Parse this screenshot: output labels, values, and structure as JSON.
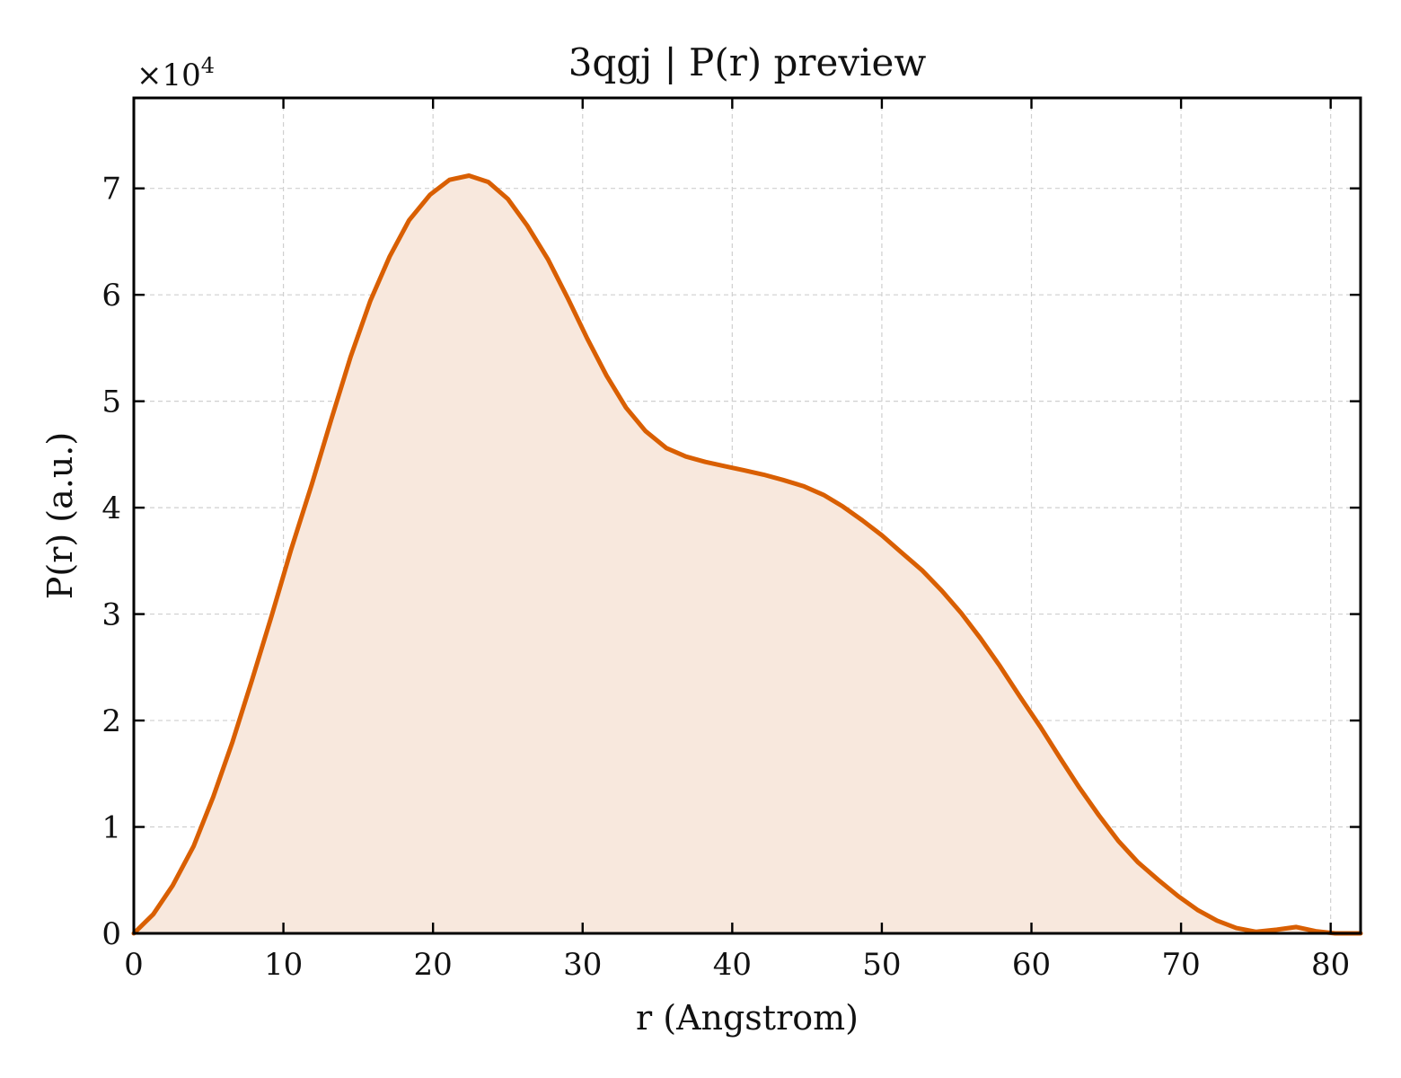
{
  "chart_data": {
    "type": "area",
    "title": "3qgj | P(r) preview",
    "xlabel": "r (Angstrom)",
    "ylabel": "P(r) (a.u.)",
    "y_multiplier_label": "×10",
    "y_multiplier_exponent": "4",
    "xlim": [
      0,
      82
    ],
    "ylim": [
      0,
      78500
    ],
    "x_ticks": [
      0,
      10,
      20,
      30,
      40,
      50,
      60,
      70,
      80
    ],
    "x_tick_labels": [
      "0",
      "10",
      "20",
      "30",
      "40",
      "50",
      "60",
      "70",
      "80"
    ],
    "y_ticks": [
      0,
      10000,
      20000,
      30000,
      40000,
      50000,
      60000,
      70000
    ],
    "y_tick_labels": [
      "0",
      "1",
      "2",
      "3",
      "4",
      "5",
      "6",
      "7"
    ],
    "grid": true,
    "colors": {
      "line": "#d95f02",
      "fill": "#f8e8dd"
    },
    "series": [
      {
        "x": [
          0,
          1.3,
          2.6,
          4.0,
          5.3,
          6.6,
          7.9,
          9.2,
          10.5,
          11.9,
          13.2,
          14.5,
          15.8,
          17.1,
          18.4,
          19.8,
          21.1,
          22.4,
          23.7,
          25.0,
          26.3,
          27.7,
          29.0,
          30.3,
          31.6,
          32.9,
          34.2,
          35.6,
          36.9,
          38.2,
          39.5,
          40.8,
          42.1,
          43.4,
          44.8,
          46.1,
          47.4,
          48.7,
          50.0,
          51.3,
          52.7,
          54.0,
          55.3,
          56.6,
          57.9,
          59.2,
          60.6,
          61.9,
          63.2,
          64.5,
          65.8,
          67.1,
          68.5,
          69.8,
          71.1,
          72.4,
          73.7,
          75.0,
          76.4,
          77.7,
          79.0,
          80.3,
          81.6,
          82.0
        ],
        "y": [
          0,
          1800,
          4500,
          8200,
          12800,
          18000,
          23800,
          29800,
          36000,
          42200,
          48300,
          54200,
          59400,
          63600,
          67000,
          69400,
          70800,
          71200,
          70600,
          69000,
          66500,
          63300,
          59700,
          55900,
          52400,
          49400,
          47200,
          45600,
          44800,
          44300,
          43900,
          43500,
          43100,
          42600,
          42000,
          41200,
          40100,
          38800,
          37400,
          35800,
          34100,
          32200,
          30100,
          27700,
          25100,
          22300,
          19400,
          16500,
          13700,
          11100,
          8700,
          6700,
          5000,
          3500,
          2200,
          1200,
          500,
          150,
          350,
          600,
          200,
          0,
          0,
          0
        ]
      }
    ]
  }
}
